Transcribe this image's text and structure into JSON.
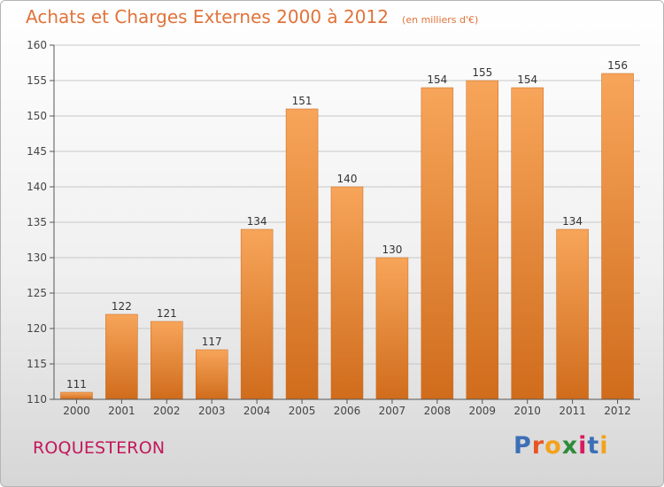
{
  "chart_data": {
    "type": "bar",
    "title": "Achats et Charges Externes 2000 à 2012",
    "subtitle": "(en milliers d'€)",
    "categories": [
      "2000",
      "2001",
      "2002",
      "2003",
      "2004",
      "2005",
      "2006",
      "2007",
      "2008",
      "2009",
      "2010",
      "2011",
      "2012"
    ],
    "values": [
      111,
      122,
      121,
      117,
      134,
      151,
      140,
      130,
      154,
      155,
      154,
      134,
      156
    ],
    "ylim": [
      110,
      160
    ],
    "yticks": [
      110,
      115,
      120,
      125,
      130,
      135,
      140,
      145,
      150,
      155,
      160
    ],
    "grid": true,
    "legend": "none",
    "xlabel": "",
    "ylabel": "",
    "colors": {
      "bar_light": "#f7a55a",
      "bar_dark": "#d06c1c",
      "label": "#333333",
      "axis": "#555555",
      "grid": "#c8c8c8"
    }
  },
  "footer": {
    "place": "ROQUESTERON",
    "brand_letters": [
      "P",
      "r",
      "o",
      "x",
      "i",
      "t",
      "i"
    ],
    "brand_colors": [
      "#3c6fb6",
      "#e8541f",
      "#f3a21b",
      "#2e8b3a",
      "#d81b60",
      "#3c6fb6",
      "#f3a21b"
    ]
  }
}
